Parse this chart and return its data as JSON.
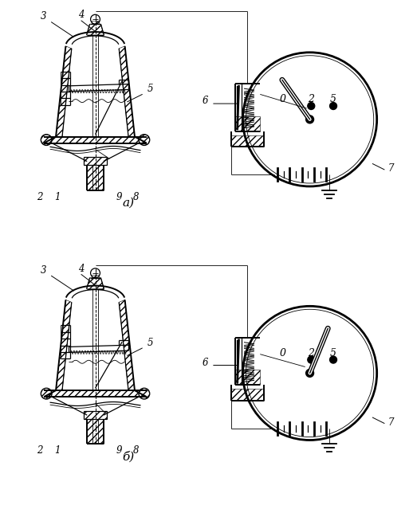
{
  "bg_color": "#ffffff",
  "lc": "#000000",
  "label_a": "а)",
  "label_b": "б)",
  "lbl_3": "3",
  "lbl_4": "4",
  "lbl_2": "2",
  "lbl_1": "1",
  "lbl_9": "9",
  "lbl_8": "8",
  "lbl_5": "5",
  "lbl_6": "6",
  "lbl_7": "7",
  "gauge_nums": [
    "0",
    "2",
    "5"
  ],
  "fs": 8.5
}
